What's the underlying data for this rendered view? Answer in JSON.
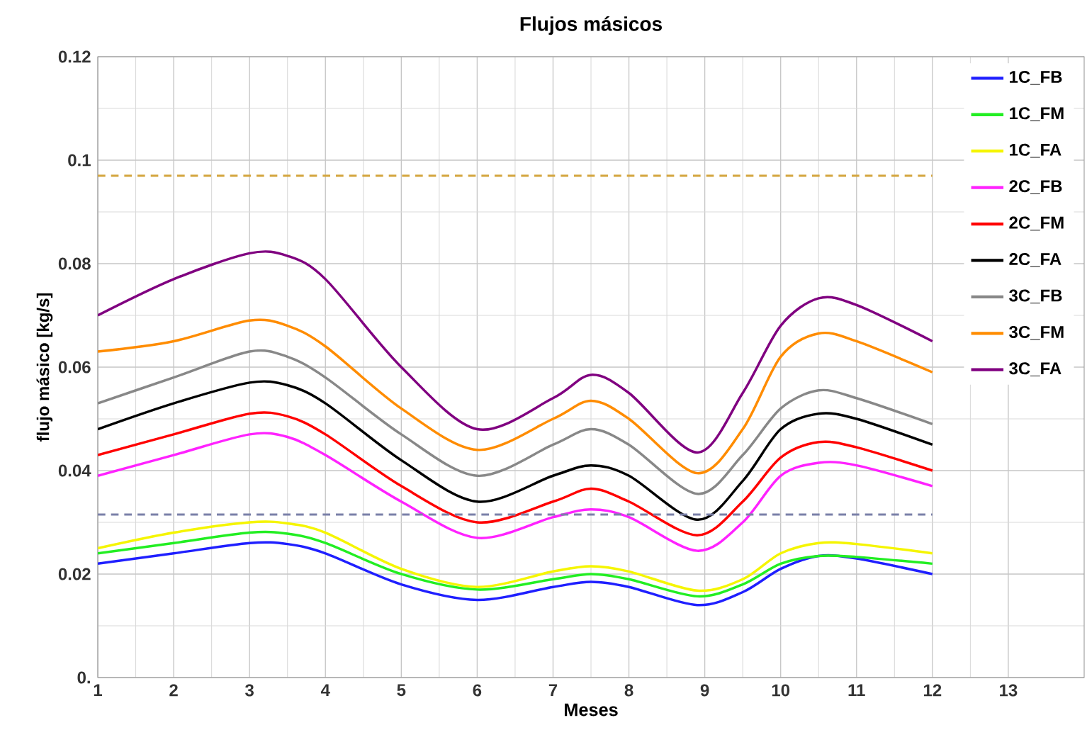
{
  "chart_data": {
    "type": "line",
    "title": "Flujos másicos",
    "xlabel": "Meses",
    "ylabel": "flujo másico [kg/s]",
    "x": [
      1,
      2,
      3,
      3.5,
      4,
      5,
      6,
      7,
      7.5,
      8,
      8.9,
      9.5,
      10,
      10.5,
      11,
      12
    ],
    "xlim": [
      1,
      14
    ],
    "ylim": [
      0,
      0.12
    ],
    "xticks": [
      1,
      2,
      3,
      4,
      5,
      6,
      7,
      8,
      9,
      10,
      11,
      12,
      13
    ],
    "yticks": [
      {
        "value": 0,
        "label": "0."
      },
      0.02,
      0.04,
      0.06,
      0.08,
      0.1,
      0.12
    ],
    "grid": true,
    "legend": "top right",
    "marker": "none",
    "line_style": "solid",
    "series": [
      {
        "name": "1C_FB",
        "color": "#1f1fff",
        "values": [
          0.022,
          0.024,
          0.026,
          0.0258,
          0.024,
          0.018,
          0.015,
          0.0175,
          0.0185,
          0.0175,
          0.014,
          0.0165,
          0.021,
          0.0235,
          0.023,
          0.02
        ]
      },
      {
        "name": "1C_FM",
        "color": "#22ee22",
        "values": [
          0.024,
          0.026,
          0.028,
          0.0278,
          0.026,
          0.02,
          0.017,
          0.019,
          0.02,
          0.019,
          0.0157,
          0.018,
          0.022,
          0.0235,
          0.0233,
          0.022
        ]
      },
      {
        "name": "1C_FA",
        "color": "#f5f500",
        "values": [
          0.025,
          0.028,
          0.03,
          0.0298,
          0.028,
          0.021,
          0.0175,
          0.0205,
          0.0215,
          0.0205,
          0.0168,
          0.019,
          0.024,
          0.026,
          0.0258,
          0.024
        ]
      },
      {
        "name": "2C_FB",
        "color": "#ff22ff",
        "values": [
          0.039,
          0.043,
          0.047,
          0.0465,
          0.043,
          0.034,
          0.027,
          0.031,
          0.0325,
          0.031,
          0.0245,
          0.03,
          0.039,
          0.0415,
          0.041,
          0.037
        ]
      },
      {
        "name": "2C_FM",
        "color": "#ff0000",
        "values": [
          0.043,
          0.047,
          0.051,
          0.0505,
          0.047,
          0.037,
          0.03,
          0.034,
          0.0365,
          0.034,
          0.0275,
          0.034,
          0.0425,
          0.0455,
          0.0445,
          0.04
        ]
      },
      {
        "name": "2C_FA",
        "color": "#000000",
        "values": [
          0.048,
          0.053,
          0.057,
          0.0565,
          0.053,
          0.042,
          0.034,
          0.039,
          0.041,
          0.039,
          0.0305,
          0.038,
          0.048,
          0.051,
          0.05,
          0.045
        ]
      },
      {
        "name": "3C_FB",
        "color": "#888888",
        "values": [
          0.053,
          0.058,
          0.063,
          0.062,
          0.058,
          0.047,
          0.039,
          0.045,
          0.048,
          0.045,
          0.0355,
          0.043,
          0.052,
          0.0555,
          0.054,
          0.049
        ]
      },
      {
        "name": "3C_FM",
        "color": "#ff8c00",
        "values": [
          0.063,
          0.065,
          0.069,
          0.068,
          0.064,
          0.052,
          0.044,
          0.05,
          0.0535,
          0.05,
          0.0395,
          0.048,
          0.062,
          0.0665,
          0.065,
          0.059
        ]
      },
      {
        "name": "3C_FA",
        "color": "#800080",
        "values": [
          0.07,
          0.077,
          0.082,
          0.0815,
          0.077,
          0.06,
          0.048,
          0.054,
          0.0585,
          0.055,
          0.0435,
          0.055,
          0.068,
          0.0733,
          0.072,
          0.065
        ]
      }
    ],
    "ref_lines": [
      {
        "axis": "y",
        "value": 0.097,
        "color": "#d4a640",
        "line_style": "dashed"
      },
      {
        "axis": "y",
        "value": 0.0315,
        "color": "#7a80a8",
        "line_style": "dashed"
      }
    ]
  }
}
